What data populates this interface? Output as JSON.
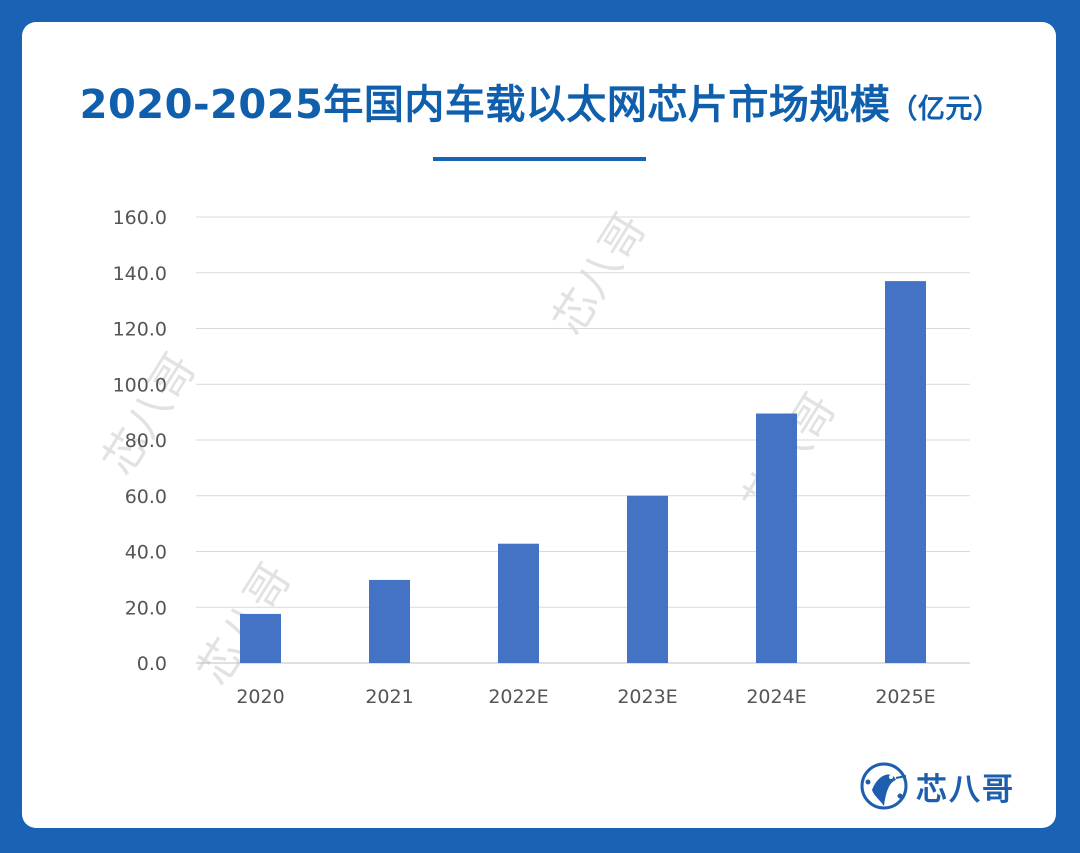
{
  "colors": {
    "background": "#1a62b4",
    "card": "#ffffff",
    "title": "#0f5fad",
    "bar": "#4472c4",
    "grid": "#d9d9d9",
    "tick_text": "#555555"
  },
  "header": {
    "title_main": "2020-2025年国内车载以太网芯片市场规模",
    "title_unit": "（亿元）"
  },
  "brand": {
    "logo_icon": "kingfisher-logo-icon",
    "name": "芯八哥"
  },
  "watermark": {
    "text": "芯八哥"
  },
  "chart_data": {
    "type": "bar",
    "title": "2020-2025年国内车载以太网芯片市场规模（亿元）",
    "categories": [
      "2020",
      "2021",
      "2022E",
      "2023E",
      "2024E",
      "2025E"
    ],
    "values": [
      17.6,
      29.8,
      42.8,
      60.0,
      89.5,
      137.0
    ],
    "yticks": [
      "0.0",
      "20.0",
      "40.0",
      "60.0",
      "80.0",
      "100.0",
      "120.0",
      "140.0",
      "160.0"
    ],
    "ylim": [
      0,
      160
    ],
    "xlabel": "",
    "ylabel": "",
    "grid": true,
    "legend": "none"
  }
}
